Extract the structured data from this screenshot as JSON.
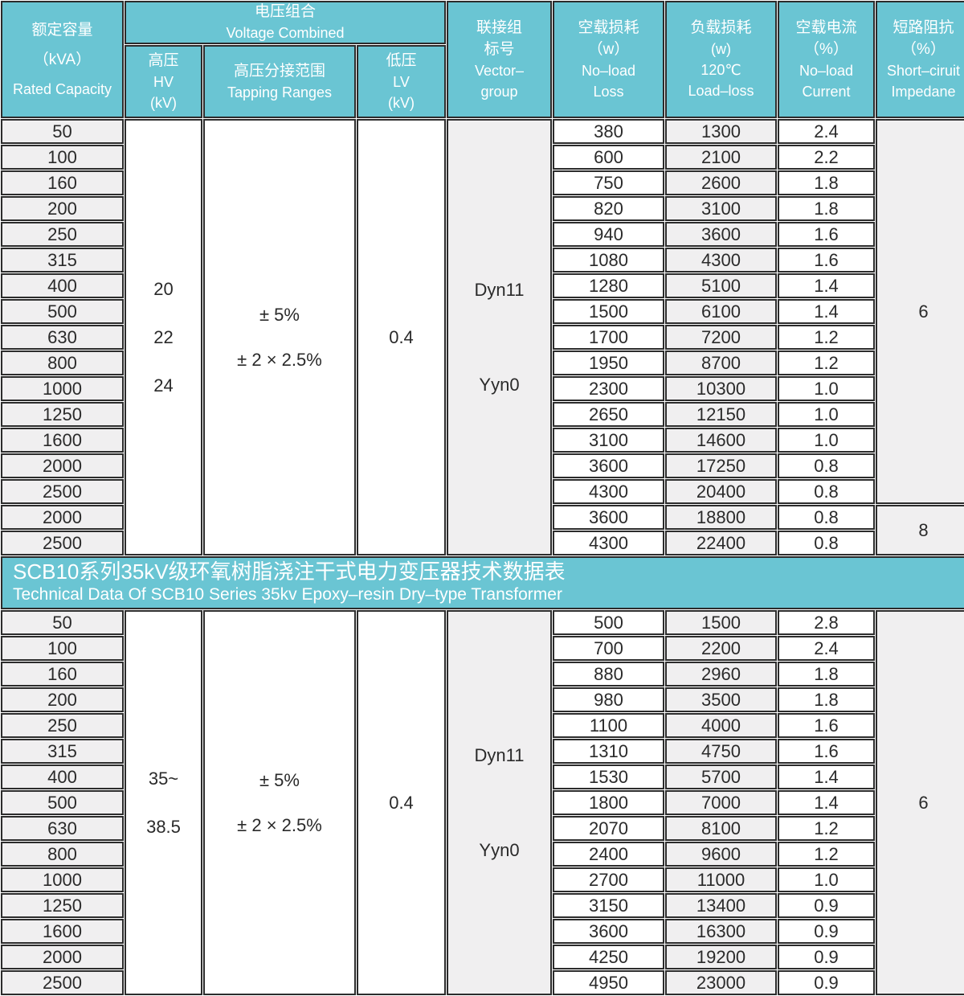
{
  "colors": {
    "header_teal": "#6ac5d3",
    "shaded_cell_gray": "#f0eff0",
    "border_dark": "#2c2c2c",
    "header_text": "#ffffff",
    "data_text": "#2a2a2a"
  },
  "header": {
    "capacity": {
      "zh": "额定容量",
      "unit": "（kVA）",
      "en": "Rated Capacity"
    },
    "voltage_group": {
      "zh": "电压组合",
      "en": "Voltage Combined"
    },
    "hv": {
      "zh": "高压",
      "en": "HV",
      "unit": "(kV)"
    },
    "tapping": {
      "zh": "高压分接范围",
      "en": "Tapping Ranges"
    },
    "lv": {
      "zh": "低压",
      "en": "LV",
      "unit": "(kV)"
    },
    "vector": {
      "zh1": "联接组",
      "zh2": "标号",
      "en1": "Vector–",
      "en2": "group"
    },
    "no_load_loss": {
      "zh": "空载损耗",
      "unit": "（w）",
      "en1": "No–load",
      "en2": "Loss"
    },
    "load_loss": {
      "zh": "负载损耗",
      "unit": "(w)",
      "temp": "120℃",
      "en": "Load–loss"
    },
    "no_load_current": {
      "zh": "空载电流",
      "unit": "（%）",
      "en1": "No–load",
      "en2": "Current"
    },
    "impedance": {
      "zh": "短路阻抗",
      "unit": "（%）",
      "en1": "Short–ciruit",
      "en2": "Impedane"
    }
  },
  "banner": {
    "zh": "SCB10系列35kV级环氧树脂浇注干式电力变压器技术数据表",
    "en": "Technical Data Of SCB10 Series 35kv Epoxy–resin Dry–type Transformer"
  },
  "row_columns": [
    "rated_capacity_kva",
    "no_load_loss_w",
    "load_loss_w",
    "no_load_current_pct"
  ],
  "sections": [
    {
      "hv_lines": [
        "20",
        "22",
        "24"
      ],
      "tapping_lines": [
        "± 5%",
        "± 2 × 2.5%"
      ],
      "lv": "0.4",
      "vector_lines": [
        "Dyn11",
        "Yyn0"
      ],
      "impedance_spans": [
        {
          "value": "6",
          "rows": 15
        },
        {
          "value": "8",
          "rows": 2
        }
      ],
      "rows": [
        [
          "50",
          "380",
          "1300",
          "2.4"
        ],
        [
          "100",
          "600",
          "2100",
          "2.2"
        ],
        [
          "160",
          "750",
          "2600",
          "1.8"
        ],
        [
          "200",
          "820",
          "3100",
          "1.8"
        ],
        [
          "250",
          "940",
          "3600",
          "1.6"
        ],
        [
          "315",
          "1080",
          "4300",
          "1.6"
        ],
        [
          "400",
          "1280",
          "5100",
          "1.4"
        ],
        [
          "500",
          "1500",
          "6100",
          "1.4"
        ],
        [
          "630",
          "1700",
          "7200",
          "1.2"
        ],
        [
          "800",
          "1950",
          "8700",
          "1.2"
        ],
        [
          "1000",
          "2300",
          "10300",
          "1.0"
        ],
        [
          "1250",
          "2650",
          "12150",
          "1.0"
        ],
        [
          "1600",
          "3100",
          "14600",
          "1.0"
        ],
        [
          "2000",
          "3600",
          "17250",
          "0.8"
        ],
        [
          "2500",
          "4300",
          "20400",
          "0.8"
        ],
        [
          "2000",
          "3600",
          "18800",
          "0.8"
        ],
        [
          "2500",
          "4300",
          "22400",
          "0.8"
        ]
      ]
    },
    {
      "hv_lines": [
        "35~",
        "38.5"
      ],
      "tapping_lines": [
        "± 5%",
        "± 2 × 2.5%"
      ],
      "lv": "0.4",
      "vector_lines": [
        "Dyn11",
        "Yyn0"
      ],
      "impedance_spans": [
        {
          "value": "6",
          "rows": 15
        }
      ],
      "rows": [
        [
          "50",
          "500",
          "1500",
          "2.8"
        ],
        [
          "100",
          "700",
          "2200",
          "2.4"
        ],
        [
          "160",
          "880",
          "2960",
          "1.8"
        ],
        [
          "200",
          "980",
          "3500",
          "1.8"
        ],
        [
          "250",
          "1100",
          "4000",
          "1.6"
        ],
        [
          "315",
          "1310",
          "4750",
          "1.6"
        ],
        [
          "400",
          "1530",
          "5700",
          "1.4"
        ],
        [
          "500",
          "1800",
          "7000",
          "1.4"
        ],
        [
          "630",
          "2070",
          "8100",
          "1.2"
        ],
        [
          "800",
          "2400",
          "9600",
          "1.2"
        ],
        [
          "1000",
          "2700",
          "11000",
          "1.0"
        ],
        [
          "1250",
          "3150",
          "13400",
          "0.9"
        ],
        [
          "1600",
          "3600",
          "16300",
          "0.9"
        ],
        [
          "2000",
          "4250",
          "19200",
          "0.9"
        ],
        [
          "2500",
          "4950",
          "23000",
          "0.9"
        ]
      ]
    }
  ]
}
